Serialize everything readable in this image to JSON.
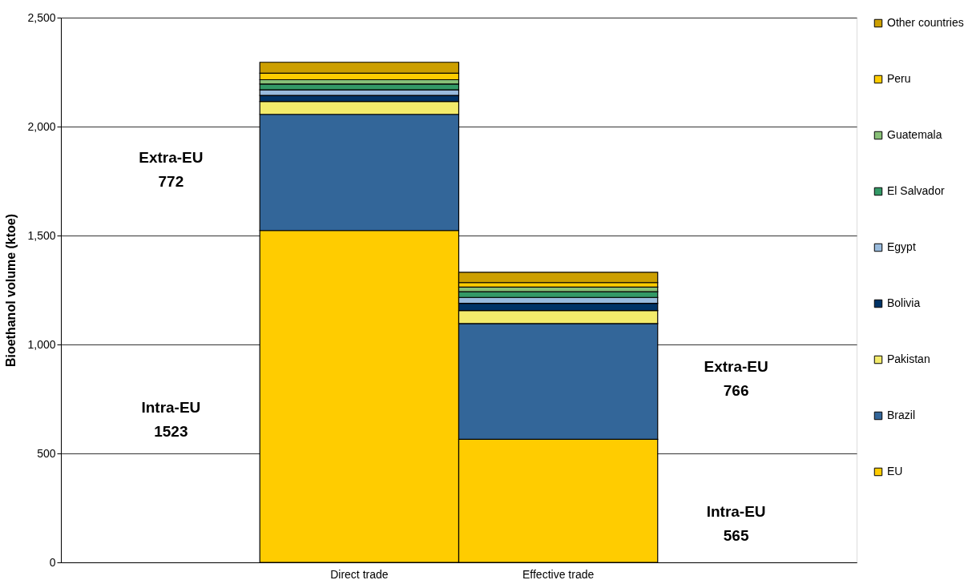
{
  "chart_data": {
    "type": "bar",
    "stacked": true,
    "ylabel": "Bioethanol volume (ktoe)",
    "categories": [
      null,
      "Direct trade",
      "Effective trade",
      null
    ],
    "series": [
      {
        "name": "EU",
        "color": "#ffcc00",
        "values": [
          null,
          1523,
          565,
          null
        ]
      },
      {
        "name": "Brazil",
        "color": "#336699",
        "values": [
          null,
          533,
          531,
          null
        ]
      },
      {
        "name": "Pakistan",
        "color": "#f3eb6b",
        "values": [
          null,
          59,
          60,
          null
        ]
      },
      {
        "name": "Bolivia",
        "color": "#003366",
        "values": [
          null,
          28,
          33,
          null
        ]
      },
      {
        "name": "Egypt",
        "color": "#99bbdd",
        "values": [
          null,
          26,
          27,
          null
        ]
      },
      {
        "name": "El Salvador",
        "color": "#339966",
        "values": [
          null,
          26,
          26,
          null
        ]
      },
      {
        "name": "Guatemala",
        "color": "#88c077",
        "values": [
          null,
          20,
          21,
          null
        ]
      },
      {
        "name": "Peru",
        "color": "#ffcc00",
        "values": [
          null,
          30,
          21,
          null
        ]
      },
      {
        "name": "Other countries",
        "color": "#cc9f00",
        "values": [
          null,
          50,
          47,
          null
        ]
      }
    ],
    "ylim": [
      0,
      2500
    ],
    "yticks": [
      0,
      500,
      {
        "value": 1000,
        "label": "1,000"
      },
      {
        "value": 1500,
        "label": "1,500"
      },
      {
        "value": 2000,
        "label": "2,000"
      },
      {
        "value": 2500,
        "label": "2,500"
      }
    ],
    "grid": "y",
    "legend": "right",
    "annotations": [
      "Extra-EU\n772",
      "Intra-EU\n1523",
      "Extra-EU\n766",
      "Intra-EU\n565"
    ]
  }
}
